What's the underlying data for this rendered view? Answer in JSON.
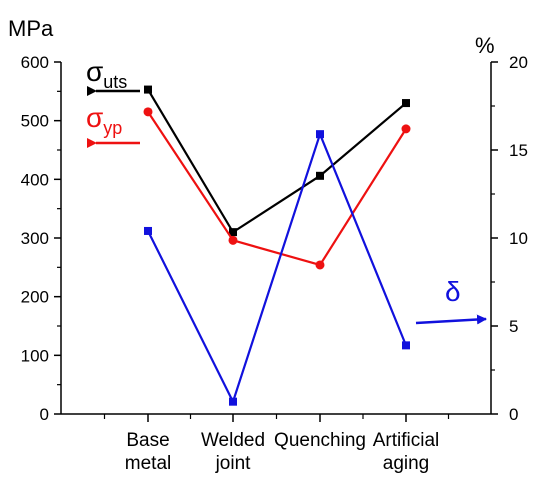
{
  "chart_data": {
    "type": "line",
    "categories": [
      [
        "Base",
        "metal"
      ],
      [
        "Welded",
        "joint"
      ],
      [
        "Quenching"
      ],
      [
        "Artificial",
        "aging"
      ]
    ],
    "left_axis": {
      "unit": "MPa",
      "ylim": [
        0,
        600
      ],
      "ticks": [
        0,
        100,
        200,
        300,
        400,
        500,
        600
      ]
    },
    "right_axis": {
      "unit": "%",
      "ylim": [
        0,
        20
      ],
      "ticks": [
        0,
        5,
        10,
        15,
        20
      ]
    },
    "series": [
      {
        "key": "uts",
        "symbol": "σ",
        "subscript": "uts",
        "axis": "left",
        "color": "#000000",
        "marker": "square",
        "values": [
          553,
          310,
          406,
          530
        ]
      },
      {
        "key": "yp",
        "symbol": "σ",
        "subscript": "yp",
        "axis": "left",
        "color": "#ee1111",
        "marker": "circle",
        "values": [
          515,
          296,
          254,
          486
        ]
      },
      {
        "key": "delta",
        "symbol": "δ",
        "subscript": "",
        "axis": "right",
        "color": "#1111dd",
        "marker": "square",
        "values": [
          10.4,
          0.7,
          15.9,
          3.9
        ]
      }
    ],
    "grid": false,
    "legend": "inline-labels-with-arrows"
  }
}
